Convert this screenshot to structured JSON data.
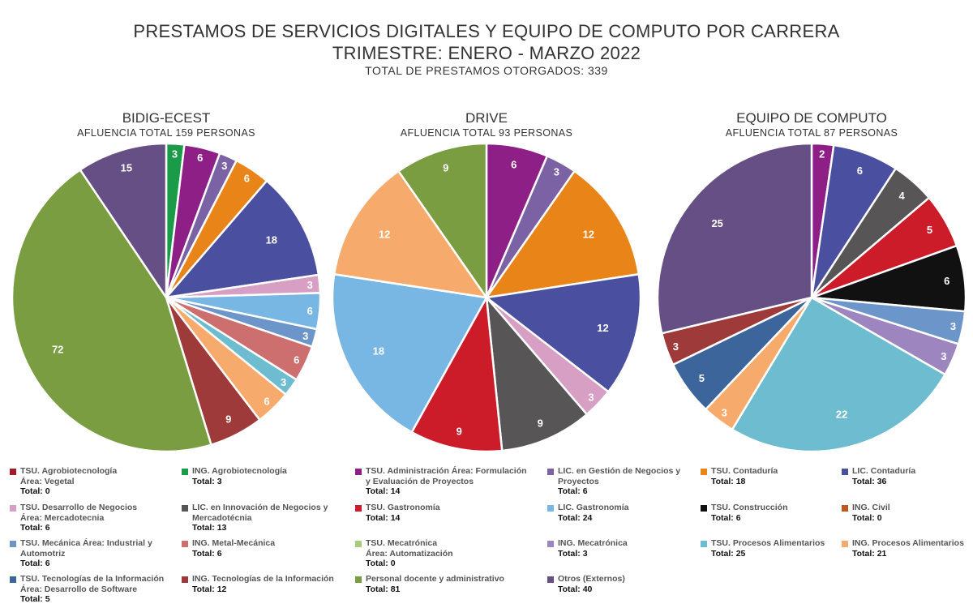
{
  "header": {
    "title_line1": "PRESTAMOS DE SERVICIOS DIGITALES Y EQUIPO DE COMPUTO POR CARRERA",
    "title_line2": "TRIMESTRE: ENERO - MARZO 2022",
    "subtitle": "TOTAL DE PRESTAMOS OTORGADOS: 339"
  },
  "chart_data": [
    {
      "type": "pie",
      "title": "BIDIG-ECEST",
      "subtitle": "AFLUENCIA TOTAL 159 PERSONAS",
      "slices": [
        {
          "value": 3,
          "color": "#1a9b48"
        },
        {
          "value": 6,
          "color": "#8e1f87"
        },
        {
          "value": 3,
          "color": "#7b62a4"
        },
        {
          "value": 6,
          "color": "#e98518"
        },
        {
          "value": 18,
          "color": "#4b4f9f"
        },
        {
          "value": 3,
          "color": "#d79fc4"
        },
        {
          "value": 6,
          "color": "#78b6e4"
        },
        {
          "value": 3,
          "color": "#6c96c9"
        },
        {
          "value": 6,
          "color": "#cc6f6e"
        },
        {
          "value": 3,
          "color": "#6dbcd0"
        },
        {
          "value": 6,
          "color": "#f6ab6c"
        },
        {
          "value": 9,
          "color": "#9e3a3a"
        },
        {
          "value": 72,
          "color": "#7b9d42"
        },
        {
          "value": 15,
          "color": "#664f85"
        }
      ]
    },
    {
      "type": "pie",
      "title": "DRIVE",
      "subtitle": "AFLUENCIA TOTAL 93 PERSONAS",
      "slices": [
        {
          "value": 6,
          "color": "#8e1f87"
        },
        {
          "value": 3,
          "color": "#7b62a4"
        },
        {
          "value": 12,
          "color": "#e98518"
        },
        {
          "value": 12,
          "color": "#4b4f9f"
        },
        {
          "value": 3,
          "color": "#d79fc4"
        },
        {
          "value": 9,
          "color": "#575555"
        },
        {
          "value": 9,
          "color": "#cc1c2a"
        },
        {
          "value": 18,
          "color": "#78b6e4"
        },
        {
          "value": 12,
          "color": "#f6ab6c"
        },
        {
          "value": 9,
          "color": "#7b9d42"
        }
      ]
    },
    {
      "type": "pie",
      "title": "EQUIPO DE COMPUTO",
      "subtitle": "AFLUENCIA TOTAL 87 PERSONAS",
      "slices": [
        {
          "value": 2,
          "color": "#8e1f87"
        },
        {
          "value": 6,
          "color": "#4b4f9f"
        },
        {
          "value": 4,
          "color": "#575555"
        },
        {
          "value": 5,
          "color": "#cc1c2a"
        },
        {
          "value": 6,
          "color": "#111111"
        },
        {
          "value": 3,
          "color": "#6c96c9"
        },
        {
          "value": 3,
          "color": "#9d85bf"
        },
        {
          "value": 22,
          "color": "#6dbcd0"
        },
        {
          "value": 3,
          "color": "#f6ab6c"
        },
        {
          "value": 5,
          "color": "#3c659c"
        },
        {
          "value": 3,
          "color": "#9e3a3a"
        },
        {
          "value": 25,
          "color": "#664f85"
        }
      ]
    }
  ],
  "legend": [
    {
      "name": "TSU.  Agrobiotecnología\nÁrea: Vegetal",
      "total": "Total: 0",
      "color": "#9e1b2b"
    },
    {
      "name": "ING. Agrobiotecnología",
      "total": "Total: 3",
      "color": "#1a9b48"
    },
    {
      "name": "TSU. Administración Área: Formulación\n y Evaluación de Proyectos",
      "total": "Total: 14",
      "color": "#8e1f87"
    },
    {
      "name": "LIC. en Gestión de Negocios y\nProyectos",
      "total": "Total: 6",
      "color": "#7b62a4"
    },
    {
      "name": "TSU. Contaduría",
      "total": "Total: 18",
      "color": "#e98518"
    },
    {
      "name": "LIC. Contaduría",
      "total": "Total: 36",
      "color": "#4b4f9f"
    },
    {
      "name": "TSU. Desarrollo de Negocios\nÁrea: Mercadotecnia",
      "total": "Total: 6",
      "color": "#d79fc4"
    },
    {
      "name": "LIC. en Innovación de Negocios y\nMercadotécnia",
      "total": "Total: 13",
      "color": "#575555"
    },
    {
      "name": "TSU. Gastronomía",
      "total": "Total: 14",
      "color": "#cc1c2a"
    },
    {
      "name": "LIC. Gastronomía",
      "total": "Total: 24",
      "color": "#78b6e4"
    },
    {
      "name": "TSU. Construcción",
      "total": "Total: 6",
      "color": "#111111"
    },
    {
      "name": "ING. Civil",
      "total": "Total: 0",
      "color": "#c0561c"
    },
    {
      "name": "TSU. Mecánica Área: Industrial y\nAutomotriz",
      "total": "Total: 6",
      "color": "#6c96c9"
    },
    {
      "name": "ING. Metal-Mecánica",
      "total": "Total: 6",
      "color": "#cc6f6e"
    },
    {
      "name": "TSU. Mecatrónica\nÁrea: Automatización",
      "total": "Total: 0",
      "color": "#a8cc7e"
    },
    {
      "name": "ING. Mecatrónica",
      "total": "Total:  3",
      "color": "#9d85bf"
    },
    {
      "name": "TSU. Procesos Alimentarios",
      "total": "Total: 25",
      "color": "#6dbcd0"
    },
    {
      "name": "ING. Procesos Alimentarios",
      "total": "Total: 21",
      "color": "#f6ab6c"
    },
    {
      "name": "TSU. Tecnologías de la Información\nÁrea: Desarrollo de Software",
      "total": "Total: 5",
      "color": "#3c659c"
    },
    {
      "name": "ING. Tecnologías de la Información",
      "total": "Total: 12",
      "color": "#9e3a3a"
    },
    {
      "name": "Personal docente y administrativo",
      "total": "Total: 81",
      "color": "#7b9d42"
    },
    {
      "name": "Otros (Externos)",
      "total": "Total: 40",
      "color": "#664f85"
    }
  ]
}
